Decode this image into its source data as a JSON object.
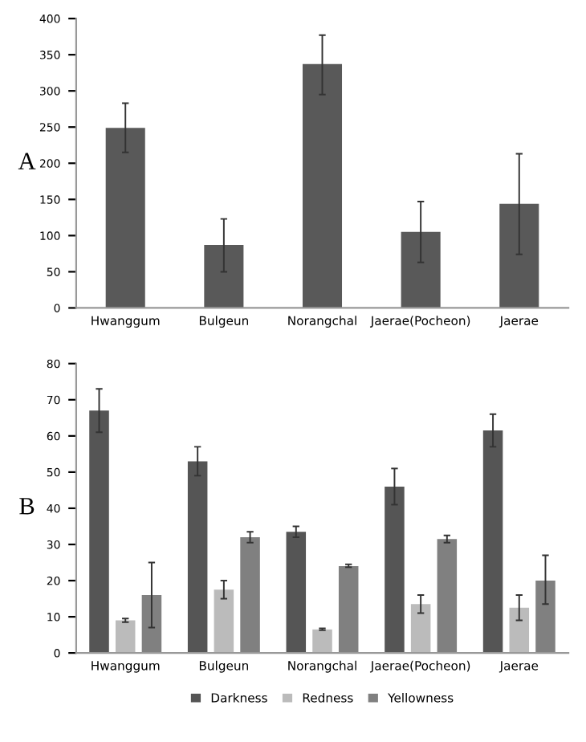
{
  "chart_data": [
    {
      "type": "bar",
      "title": "A",
      "categories": [
        "Hwanggum",
        "Bulgeun",
        "Norangchal",
        "Jaerae(Pocheon)",
        "Jaerae"
      ],
      "values": [
        249,
        87,
        337,
        105,
        144
      ],
      "errors": [
        [
          215,
          283
        ],
        [
          50,
          123
        ],
        [
          295,
          377
        ],
        [
          63,
          147
        ],
        [
          74,
          213
        ]
      ],
      "color": "#595959",
      "ylim": [
        0,
        400
      ],
      "yticks": [
        0,
        50,
        100,
        150,
        200,
        250,
        300,
        350,
        400
      ],
      "grid": false,
      "legend": false
    },
    {
      "type": "bar",
      "title": "B",
      "categories": [
        "Hwanggum",
        "Bulgeun",
        "Norangchal",
        "Jaerae(Pocheon)",
        "Jaerae"
      ],
      "series": [
        {
          "name": "Darkness",
          "color": "#555555",
          "values": [
            67,
            53,
            33.5,
            46,
            61.5
          ],
          "errors": [
            [
              61,
              73
            ],
            [
              49,
              57
            ],
            [
              32,
              35
            ],
            [
              41,
              51
            ],
            [
              57,
              66
            ]
          ]
        },
        {
          "name": "Redness",
          "color": "#bbbbbb",
          "values": [
            9,
            17.5,
            6.5,
            13.5,
            12.5
          ],
          "errors": [
            [
              8.5,
              9.5
            ],
            [
              15,
              20
            ],
            [
              6.3,
              6.8
            ],
            [
              11,
              16
            ],
            [
              9,
              16
            ]
          ]
        },
        {
          "name": "Yellowness",
          "color": "#808080",
          "values": [
            16,
            32,
            24,
            31.5,
            20
          ],
          "errors": [
            [
              7,
              25
            ],
            [
              30.5,
              33.5
            ],
            [
              23.7,
              24.5
            ],
            [
              30.5,
              32.5
            ],
            [
              13.5,
              27
            ]
          ]
        }
      ],
      "ylim": [
        0,
        80
      ],
      "yticks": [
        0,
        10,
        20,
        30,
        40,
        50,
        60,
        70,
        80
      ],
      "grid": false,
      "legend": "bottom"
    }
  ]
}
